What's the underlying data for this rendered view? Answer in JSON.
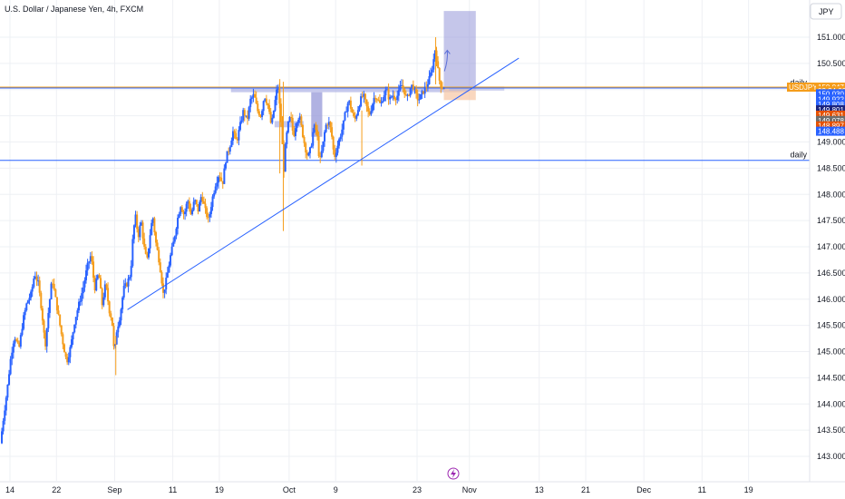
{
  "chart_data": {
    "type": "candlestick",
    "title": "U.S. Dollar / Japanese Yen, 4h, FXCM",
    "currency_label": "JPY",
    "ylim": [
      142.8,
      151.6
    ],
    "y_ticks": [
      "143.000",
      "143.500",
      "144.000",
      "144.500",
      "145.000",
      "145.500",
      "146.000",
      "146.500",
      "147.000",
      "147.500",
      "148.000",
      "148.500",
      "149.000",
      "149.500",
      "150.000",
      "150.500",
      "151.000"
    ],
    "x_ticks": [
      {
        "label": "14",
        "t": 14
      },
      {
        "label": "22",
        "t": 22
      },
      {
        "label": "Sep",
        "t": 32
      },
      {
        "label": "11",
        "t": 42
      },
      {
        "label": "19",
        "t": 50
      },
      {
        "label": "Oct",
        "t": 62
      },
      {
        "label": "9",
        "t": 70
      },
      {
        "label": "23",
        "t": 84
      },
      {
        "label": "Nov",
        "t": 93
      },
      {
        "label": "13",
        "t": 105
      },
      {
        "label": "21",
        "t": 113
      },
      {
        "label": "Dec",
        "t": 123
      },
      {
        "label": "11",
        "t": 133
      },
      {
        "label": "19",
        "t": 141
      }
    ],
    "x_range": [
      12.6,
      151.5
    ],
    "price_path": [
      [
        12.6,
        143.25
      ],
      [
        13.2,
        143.8
      ],
      [
        13.8,
        144.3
      ],
      [
        14.4,
        144.9
      ],
      [
        15.0,
        145.3
      ],
      [
        15.8,
        145.05
      ],
      [
        16.5,
        145.6
      ],
      [
        17.2,
        145.95
      ],
      [
        17.9,
        146.1
      ],
      [
        18.5,
        146.5
      ],
      [
        19.1,
        146.3
      ],
      [
        19.7,
        145.8
      ],
      [
        20.3,
        145.1
      ],
      [
        20.9,
        145.8
      ],
      [
        21.5,
        146.4
      ],
      [
        22.1,
        146.0
      ],
      [
        22.7,
        145.6
      ],
      [
        23.3,
        145.2
      ],
      [
        24.0,
        144.8
      ],
      [
        24.7,
        145.1
      ],
      [
        25.4,
        145.6
      ],
      [
        26.1,
        145.9
      ],
      [
        26.8,
        146.2
      ],
      [
        27.5,
        146.6
      ],
      [
        28.2,
        146.85
      ],
      [
        28.8,
        146.2
      ],
      [
        29.5,
        146.5
      ],
      [
        30.1,
        145.9
      ],
      [
        30.7,
        146.3
      ],
      [
        31.3,
        145.8
      ],
      [
        31.8,
        145.6
      ],
      [
        32.2,
        144.9
      ],
      [
        32.6,
        145.4
      ],
      [
        33.2,
        145.7
      ],
      [
        33.8,
        146.2
      ],
      [
        34.4,
        146.3
      ],
      [
        35.0,
        146.5
      ],
      [
        35.4,
        147.2
      ],
      [
        35.8,
        147.6
      ],
      [
        36.3,
        147.2
      ],
      [
        36.8,
        147.5
      ],
      [
        37.3,
        147.0
      ],
      [
        37.8,
        146.7
      ],
      [
        38.3,
        147.2
      ],
      [
        38.8,
        147.6
      ],
      [
        39.3,
        147.1
      ],
      [
        39.8,
        146.8
      ],
      [
        40.2,
        146.5
      ],
      [
        40.6,
        146.1
      ],
      [
        41.2,
        146.4
      ],
      [
        41.8,
        146.8
      ],
      [
        42.4,
        147.1
      ],
      [
        43.0,
        147.5
      ],
      [
        43.6,
        147.8
      ],
      [
        44.2,
        147.6
      ],
      [
        44.8,
        147.9
      ],
      [
        45.4,
        147.6
      ],
      [
        46.0,
        147.9
      ],
      [
        46.6,
        147.7
      ],
      [
        47.2,
        148.0
      ],
      [
        47.8,
        147.7
      ],
      [
        48.4,
        147.5
      ],
      [
        49.0,
        147.9
      ],
      [
        49.6,
        148.2
      ],
      [
        50.2,
        148.4
      ],
      [
        50.8,
        148.2
      ],
      [
        51.4,
        148.7
      ],
      [
        52.0,
        148.9
      ],
      [
        52.6,
        149.2
      ],
      [
        53.2,
        149.0
      ],
      [
        53.8,
        149.3
      ],
      [
        54.4,
        149.6
      ],
      [
        55.0,
        149.4
      ],
      [
        55.6,
        149.8
      ],
      [
        56.2,
        149.9
      ],
      [
        56.8,
        149.6
      ],
      [
        57.4,
        149.5
      ],
      [
        58.0,
        149.9
      ],
      [
        58.6,
        149.7
      ],
      [
        59.2,
        149.3
      ],
      [
        59.6,
        149.6
      ],
      [
        60.0,
        149.9
      ],
      [
        60.3,
        150.1
      ],
      [
        60.6,
        149.7
      ],
      [
        61.0,
        149.2
      ],
      [
        61.3,
        148.4
      ],
      [
        61.6,
        148.9
      ],
      [
        62.0,
        149.3
      ],
      [
        62.5,
        149.5
      ],
      [
        63.0,
        149.1
      ],
      [
        63.5,
        149.4
      ],
      [
        64.0,
        149.5
      ],
      [
        64.5,
        149.2
      ],
      [
        65.0,
        148.9
      ],
      [
        65.5,
        148.7
      ],
      [
        66.0,
        148.9
      ],
      [
        66.5,
        149.3
      ],
      [
        67.0,
        149.2
      ],
      [
        67.5,
        148.6
      ],
      [
        68.0,
        148.9
      ],
      [
        68.5,
        149.3
      ],
      [
        69.0,
        149.4
      ],
      [
        69.5,
        149.2
      ],
      [
        70.0,
        148.7
      ],
      [
        70.5,
        148.9
      ],
      [
        71.0,
        149.1
      ],
      [
        71.5,
        149.3
      ],
      [
        72.0,
        149.6
      ],
      [
        72.5,
        149.8
      ],
      [
        73.0,
        149.6
      ],
      [
        73.5,
        149.4
      ],
      [
        74.0,
        149.6
      ],
      [
        74.5,
        149.8
      ],
      [
        75.0,
        149.9
      ],
      [
        75.5,
        149.7
      ],
      [
        76.0,
        149.5
      ],
      [
        76.5,
        149.7
      ],
      [
        77.0,
        149.9
      ],
      [
        77.5,
        149.8
      ],
      [
        78.0,
        149.7
      ],
      [
        78.5,
        149.9
      ],
      [
        79.0,
        150.0
      ],
      [
        79.5,
        149.8
      ],
      [
        80.0,
        149.9
      ],
      [
        80.5,
        149.85
      ],
      [
        81.0,
        149.9
      ],
      [
        81.5,
        150.1
      ],
      [
        82.0,
        150.0
      ],
      [
        82.5,
        149.8
      ],
      [
        83.0,
        150.0
      ],
      [
        83.5,
        150.1
      ],
      [
        84.0,
        149.9
      ],
      [
        84.5,
        149.8
      ],
      [
        85.0,
        149.9
      ],
      [
        85.5,
        150.0
      ],
      [
        86.0,
        150.1
      ],
      [
        86.5,
        150.25
      ],
      [
        87.0,
        150.5
      ],
      [
        87.4,
        150.8
      ],
      [
        87.8,
        150.4
      ],
      [
        88.2,
        150.1
      ],
      [
        88.6,
        150.05
      ]
    ],
    "drawings": {
      "trendline": {
        "from": [
          34.2,
          145.8
        ],
        "to": [
          101.5,
          150.6
        ],
        "color": "#2962ff"
      },
      "rectangles": [
        {
          "x": [
            52.0,
            93.0
          ],
          "y": [
            149.95,
            150.05
          ],
          "fill": "#b3b7e6"
        },
        {
          "x": [
            59.5,
            64.5
          ],
          "y": [
            149.28,
            149.4
          ],
          "fill": "#b3b7e6"
        },
        {
          "x": [
            65.8,
            67.7
          ],
          "y": [
            149.1,
            149.95
          ],
          "fill": "#9598d8"
        },
        {
          "x": [
            88.6,
            94.1
          ],
          "y": [
            150.05,
            151.5
          ],
          "fill": "#9598d8",
          "opacity": 0.55
        },
        {
          "x": [
            88.6,
            94.1
          ],
          "y": [
            149.8,
            150.05
          ],
          "fill": "#f7c6a4",
          "opacity": 0.7
        },
        {
          "x": [
            89.5,
            99.0
          ],
          "y": [
            149.98,
            150.06
          ],
          "fill": "#b3b7e6",
          "opacity": 0.6
        }
      ],
      "arrow": {
        "from": [
          88.7,
          150.35
        ],
        "to": [
          89.2,
          150.75
        ],
        "color": "#5b6fd8"
      }
    },
    "horizontal_lines": [
      {
        "price": 150.047,
        "color": "#f5a623",
        "label": ""
      },
      {
        "price": 150.03,
        "color": "#2962ff",
        "label": "daily"
      },
      {
        "price": 148.65,
        "color": "#2962ff",
        "label": "daily"
      }
    ],
    "price_badges": [
      {
        "text": "USDJPY",
        "color": "#f59d1b",
        "price": 150.047
      },
      {
        "text": "150.047",
        "color": "#f59d1b",
        "price": 150.047
      },
      {
        "text": "02:34:00",
        "color": "#f59d1b",
        "price": 149.976
      },
      {
        "text": "150.030",
        "color": "#2962ff",
        "price": 149.92
      },
      {
        "text": "149.922",
        "color": "#2962ff",
        "price": 149.818
      },
      {
        "text": "149.808",
        "color": "#2962ff",
        "price": 149.716
      },
      {
        "text": "149.801",
        "color": "#1a237e",
        "price": 149.614
      },
      {
        "text": "149.631",
        "color": "#e65100",
        "price": 149.512
      },
      {
        "text": "149.078",
        "color": "#6d6d6d",
        "price": 149.41
      },
      {
        "text": "148.897",
        "color": "#e65100",
        "price": 149.308
      },
      {
        "text": "148.488",
        "color": "#2962ff",
        "price": 149.206
      }
    ],
    "colors": {
      "up": "#2962ff",
      "down": "#f59d1b",
      "grid": "#eef0f4",
      "axis_text": "#131722"
    }
  }
}
